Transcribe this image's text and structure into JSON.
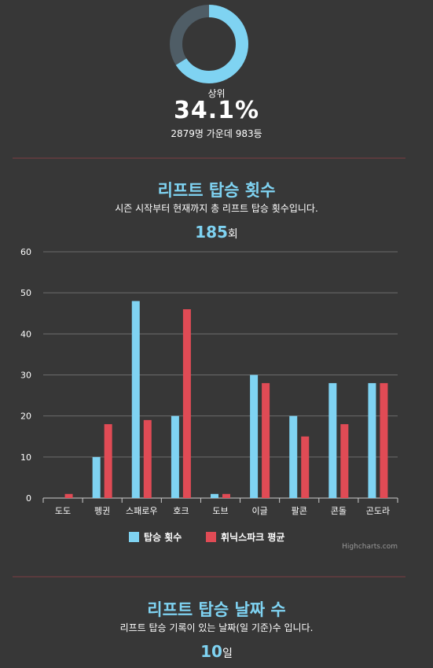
{
  "rank": {
    "label": "상위",
    "percent": "34.1%",
    "detail": "2879명 가운데 983등",
    "ring_fraction": 0.659,
    "ring_color": "#7fd3f2",
    "ring_bg_color": "#4f5d66"
  },
  "lift_section": {
    "title": "리프트 탑승 횟수",
    "subtitle": "시즌 시작부터 현재까지 총 리프트 탑승 횟수입니다.",
    "count": "185",
    "unit": "회"
  },
  "days_section": {
    "title": "리프트 탑승 날짜 수",
    "subtitle": "리프트 탑승 기록이 있는 날짜(일 기준)수 입니다.",
    "count": "10",
    "unit": "일"
  },
  "credit": "Highcharts.com",
  "colors": {
    "series1": "#7fd3f2",
    "series2": "#e04b55",
    "grid": "#6b6b6b",
    "title": "#7fd3f2"
  },
  "chart_data": {
    "type": "bar",
    "categories": [
      "도도",
      "펭귄",
      "스패로우",
      "호크",
      "도브",
      "이글",
      "팔콘",
      "콘돌",
      "곤도라"
    ],
    "series": [
      {
        "name": "탑승 횟수",
        "values": [
          0,
          10,
          48,
          20,
          1,
          30,
          20,
          28,
          28
        ]
      },
      {
        "name": "휘닉스파크 평균",
        "values": [
          1,
          18,
          19,
          46,
          1,
          28,
          15,
          18,
          28
        ]
      }
    ],
    "ylim": [
      0,
      60
    ],
    "yticks": [
      0,
      10,
      20,
      30,
      40,
      50,
      60
    ],
    "grid": true,
    "legend": "bottom-center"
  }
}
